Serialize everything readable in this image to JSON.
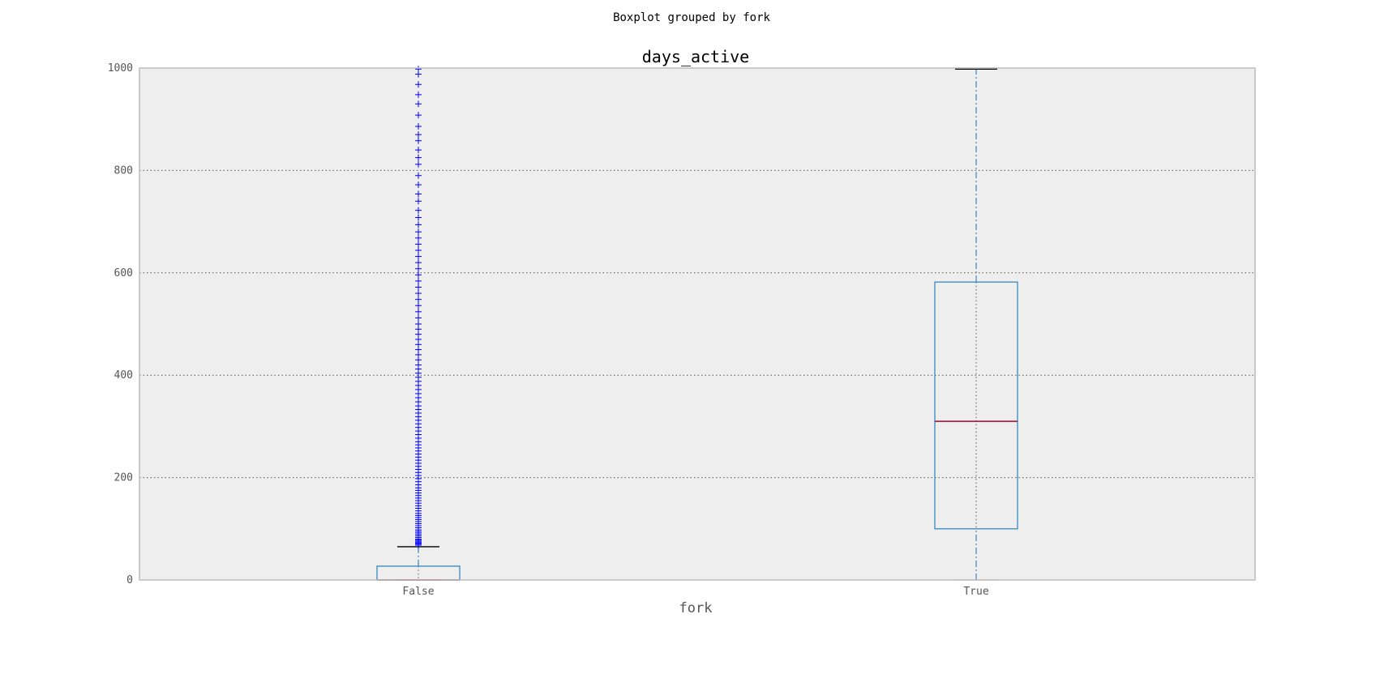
{
  "chart_data": {
    "type": "boxplot",
    "suptitle": "Boxplot grouped by fork",
    "title": "days_active",
    "xlabel": "fork",
    "ylabel": "",
    "ylim": [
      0,
      1000
    ],
    "yticks": [
      0,
      200,
      400,
      600,
      800,
      1000
    ],
    "grid": "y",
    "categories": [
      "False",
      "True"
    ],
    "boxes": [
      {
        "category": "False",
        "whisker_low": 0,
        "q1": 0,
        "median": 0,
        "q3": 27,
        "whisker_high": 65,
        "fliers": [
          68,
          70,
          72,
          74,
          76,
          78,
          80,
          83,
          86,
          89,
          92,
          95,
          98,
          102,
          106,
          110,
          114,
          118,
          122,
          126,
          130,
          135,
          140,
          145,
          150,
          155,
          160,
          165,
          170,
          175,
          180,
          186,
          192,
          198,
          204,
          210,
          216,
          222,
          228,
          234,
          240,
          246,
          252,
          258,
          264,
          270,
          277,
          284,
          291,
          298,
          305,
          312,
          319,
          326,
          333,
          340,
          348,
          356,
          364,
          372,
          380,
          388,
          396,
          404,
          412,
          420,
          430,
          440,
          450,
          460,
          470,
          480,
          490,
          500,
          512,
          524,
          536,
          548,
          560,
          572,
          584,
          596,
          608,
          620,
          632,
          644,
          656,
          668,
          680,
          694,
          708,
          722,
          740,
          754,
          772,
          790,
          812,
          825,
          840,
          858,
          870,
          886,
          908,
          930,
          948,
          968,
          988,
          998
        ]
      },
      {
        "category": "True",
        "whisker_low": 0,
        "q1": 100,
        "median": 310,
        "q3": 582,
        "whisker_high": 998,
        "fliers": []
      }
    ],
    "colors": {
      "box": "#348abd",
      "median": "#a60628",
      "caps": "#000000",
      "fliers": "#0000ff",
      "plot_background": "#eeeeee"
    }
  }
}
